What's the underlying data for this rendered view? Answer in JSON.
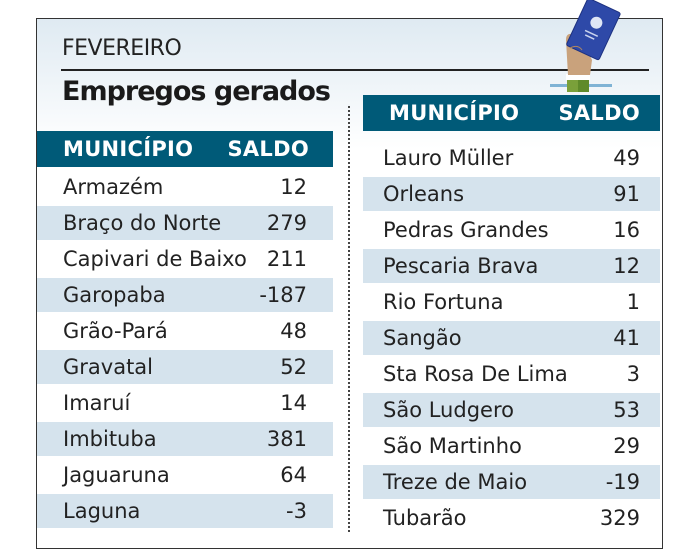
{
  "header": {
    "month": "FEVEREIRO",
    "title": "Empregos gerados"
  },
  "columns": {
    "municipio": "MUNICÍPIO",
    "saldo": "SALDO"
  },
  "colors": {
    "header_bg": "#005a78",
    "stripe": "#d5e3ed"
  },
  "left_table": [
    {
      "municipio": "Armazém",
      "saldo": "12"
    },
    {
      "municipio": "Braço do Norte",
      "saldo": "279"
    },
    {
      "municipio": "Capivari de Baixo",
      "saldo": "211"
    },
    {
      "municipio": "Garopaba",
      "saldo": "-187"
    },
    {
      "municipio": "Grão-Pará",
      "saldo": "48"
    },
    {
      "municipio": "Gravatal",
      "saldo": "52"
    },
    {
      "municipio": "Imaruí",
      "saldo": "14"
    },
    {
      "municipio": "Imbituba",
      "saldo": "381"
    },
    {
      "municipio": "Jaguaruna",
      "saldo": "64"
    },
    {
      "municipio": "Laguna",
      "saldo": "-3"
    }
  ],
  "right_table": [
    {
      "municipio": "Lauro Müller",
      "saldo": "49"
    },
    {
      "municipio": "Orleans",
      "saldo": "91"
    },
    {
      "municipio": "Pedras Grandes",
      "saldo": "16"
    },
    {
      "municipio": "Pescaria Brava",
      "saldo": "12"
    },
    {
      "municipio": "Rio Fortuna",
      "saldo": "1"
    },
    {
      "municipio": "Sangão",
      "saldo": "41"
    },
    {
      "municipio": "Sta Rosa De Lima",
      "saldo": "3"
    },
    {
      "municipio": "São Ludgero",
      "saldo": "53"
    },
    {
      "municipio": "São Martinho",
      "saldo": "29"
    },
    {
      "municipio": "Treze de Maio",
      "saldo": "-19"
    },
    {
      "municipio": "Tubarão",
      "saldo": "329"
    }
  ]
}
